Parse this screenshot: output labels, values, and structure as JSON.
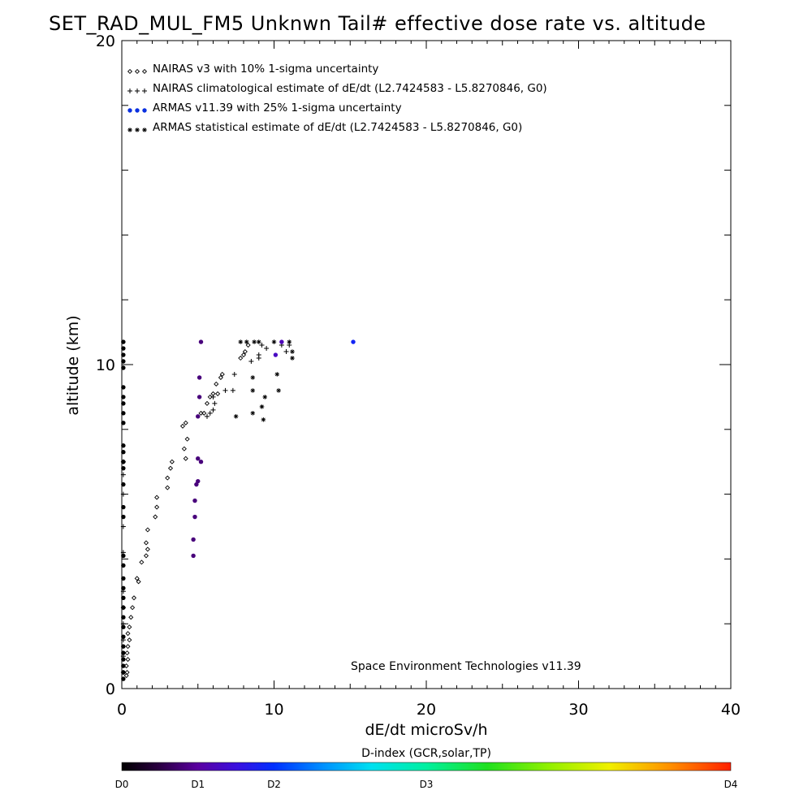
{
  "chart_data": {
    "type": "scatter",
    "title": "SET_RAD_MUL_FM5 Unknwn Tail#  effective dose rate vs. altitude",
    "xlabel": "dE/dt microSv/h",
    "ylabel": "altitude (km)",
    "xlim": [
      0,
      40
    ],
    "ylim": [
      0,
      20
    ],
    "x_ticks": [
      "0",
      "10",
      "20",
      "30",
      "40"
    ],
    "y_ticks": [
      "0",
      "10",
      "20"
    ],
    "grid": false,
    "legend_position": "top-left",
    "credit": "Space Environment Technologies v11.39",
    "colorbar": {
      "title": "D-index (GCR,solar,TP)",
      "labels": [
        {
          "text": "D0",
          "value": 0
        },
        {
          "text": "D1",
          "value": 0.125
        },
        {
          "text": "D2",
          "value": 0.25
        },
        {
          "text": "D3",
          "value": 0.5
        },
        {
          "text": "D4",
          "value": 1.0
        }
      ]
    },
    "series": [
      {
        "name": "NAIRAS v3 with 10% 1-sigma uncertainty",
        "marker": "diamond",
        "color": "#000000",
        "points": [
          [
            0.3,
            0.4
          ],
          [
            0.35,
            0.5
          ],
          [
            0.3,
            0.7
          ],
          [
            0.4,
            0.9
          ],
          [
            0.35,
            1.1
          ],
          [
            0.4,
            1.3
          ],
          [
            0.5,
            1.5
          ],
          [
            0.4,
            1.7
          ],
          [
            0.5,
            1.9
          ],
          [
            0.6,
            2.2
          ],
          [
            0.7,
            2.5
          ],
          [
            0.8,
            2.8
          ],
          [
            1.1,
            3.3
          ],
          [
            1.0,
            3.4
          ],
          [
            1.3,
            3.9
          ],
          [
            1.6,
            4.1
          ],
          [
            1.7,
            4.3
          ],
          [
            1.6,
            4.5
          ],
          [
            1.7,
            4.9
          ],
          [
            2.2,
            5.3
          ],
          [
            2.3,
            5.6
          ],
          [
            2.3,
            5.9
          ],
          [
            3.0,
            6.2
          ],
          [
            3.0,
            6.5
          ],
          [
            3.2,
            6.8
          ],
          [
            3.3,
            7.0
          ],
          [
            4.2,
            7.1
          ],
          [
            4.1,
            7.4
          ],
          [
            4.3,
            7.7
          ],
          [
            4.0,
            8.1
          ],
          [
            4.2,
            8.2
          ],
          [
            5.2,
            8.5
          ],
          [
            5.4,
            8.5
          ],
          [
            5.6,
            8.8
          ],
          [
            5.8,
            9.0
          ],
          [
            6.0,
            9.1
          ],
          [
            6.3,
            9.1
          ],
          [
            6.2,
            9.4
          ],
          [
            6.5,
            9.6
          ],
          [
            6.6,
            9.7
          ],
          [
            7.8,
            10.2
          ],
          [
            8.0,
            10.3
          ],
          [
            8.1,
            10.4
          ],
          [
            8.3,
            10.6
          ]
        ]
      },
      {
        "name": "NAIRAS climatological estimate of dE/dt (L2.7424583 - L5.8270846, G0)",
        "marker": "plus",
        "color": "#000000",
        "points": [
          [
            0.1,
            0.5
          ],
          [
            0.1,
            1.0
          ],
          [
            0.1,
            1.5
          ],
          [
            0.1,
            2.0
          ],
          [
            0.1,
            2.5
          ],
          [
            0.1,
            3.0
          ],
          [
            0.1,
            4.2
          ],
          [
            0.1,
            5.0
          ],
          [
            0.1,
            6.0
          ],
          [
            0.1,
            6.6
          ],
          [
            0.1,
            7.0
          ],
          [
            5.6,
            8.4
          ],
          [
            5.8,
            8.5
          ],
          [
            6.0,
            8.6
          ],
          [
            6.1,
            8.8
          ],
          [
            6.0,
            9.0
          ],
          [
            6.8,
            9.2
          ],
          [
            7.3,
            9.2
          ],
          [
            7.4,
            9.7
          ],
          [
            8.5,
            10.1
          ],
          [
            9.0,
            10.3
          ],
          [
            9.0,
            10.2
          ],
          [
            9.2,
            10.6
          ],
          [
            9.5,
            10.5
          ],
          [
            10.5,
            10.6
          ],
          [
            10.8,
            10.4
          ],
          [
            11.0,
            10.6
          ]
        ]
      },
      {
        "name": "ARMAS v11.39 with 25% 1-sigma uncertainty",
        "marker": "dot",
        "color_scale": "D-index",
        "points": [
          [
            0.1,
            0.3
          ],
          [
            0.1,
            0.5
          ],
          [
            0.1,
            0.7
          ],
          [
            0.1,
            0.9
          ],
          [
            0.1,
            1.1
          ],
          [
            0.1,
            1.3
          ],
          [
            0.1,
            1.6
          ],
          [
            0.1,
            1.9
          ],
          [
            0.1,
            2.2
          ],
          [
            0.1,
            2.5
          ],
          [
            0.1,
            2.8
          ],
          [
            0.1,
            3.1
          ],
          [
            0.1,
            3.4
          ],
          [
            0.1,
            3.8
          ],
          [
            0.1,
            4.1
          ],
          [
            0.1,
            5.3
          ],
          [
            0.1,
            5.6
          ],
          [
            0.1,
            6.3
          ],
          [
            0.1,
            6.8
          ],
          [
            0.1,
            7.0
          ],
          [
            0.1,
            7.3
          ],
          [
            0.1,
            7.5
          ],
          [
            0.1,
            8.2
          ],
          [
            0.1,
            8.5
          ],
          [
            0.1,
            8.8
          ],
          [
            0.1,
            9.0
          ],
          [
            0.1,
            9.3
          ],
          [
            0.1,
            9.9
          ],
          [
            0.1,
            10.1
          ],
          [
            0.1,
            10.3
          ],
          [
            0.1,
            10.5
          ],
          [
            0.1,
            10.7
          ],
          [
            4.7,
            4.1
          ],
          [
            4.7,
            4.6
          ],
          [
            4.8,
            5.3
          ],
          [
            4.8,
            5.8
          ],
          [
            4.9,
            6.3
          ],
          [
            5.0,
            6.4
          ],
          [
            5.0,
            7.1
          ],
          [
            5.2,
            7.0
          ],
          [
            5.0,
            8.4
          ],
          [
            5.1,
            9.0
          ],
          [
            5.1,
            9.6
          ],
          [
            5.2,
            10.7
          ],
          [
            10.1,
            10.3
          ],
          [
            10.5,
            10.7
          ],
          [
            15.2,
            10.7
          ]
        ],
        "d_index": [
          0,
          0,
          0,
          0,
          0,
          0,
          0,
          0,
          0,
          0,
          0,
          0,
          0,
          0,
          0,
          0,
          0,
          0,
          0,
          0,
          0,
          0,
          0,
          0,
          0,
          0,
          0,
          0,
          0,
          0,
          0,
          0,
          0.1,
          0.1,
          0.1,
          0.1,
          0.1,
          0.1,
          0.1,
          0.1,
          0.1,
          0.1,
          0.1,
          0.1,
          0.16,
          0.15,
          0.23
        ]
      },
      {
        "name": "ARMAS statistical estimate of dE/dt (L2.7424583 - L5.8270846, G0)",
        "marker": "asterisk",
        "color": "#000000",
        "points": [
          [
            7.5,
            8.4
          ],
          [
            8.6,
            8.5
          ],
          [
            9.3,
            8.3
          ],
          [
            9.2,
            8.7
          ],
          [
            9.4,
            9.0
          ],
          [
            8.6,
            9.2
          ],
          [
            10.3,
            9.2
          ],
          [
            8.6,
            9.6
          ],
          [
            10.2,
            9.7
          ],
          [
            11.2,
            10.2
          ],
          [
            11.2,
            10.4
          ],
          [
            11.0,
            10.7
          ],
          [
            7.8,
            10.7
          ],
          [
            8.2,
            10.7
          ],
          [
            8.7,
            10.7
          ],
          [
            9.0,
            10.7
          ],
          [
            10.0,
            10.7
          ]
        ]
      }
    ]
  }
}
